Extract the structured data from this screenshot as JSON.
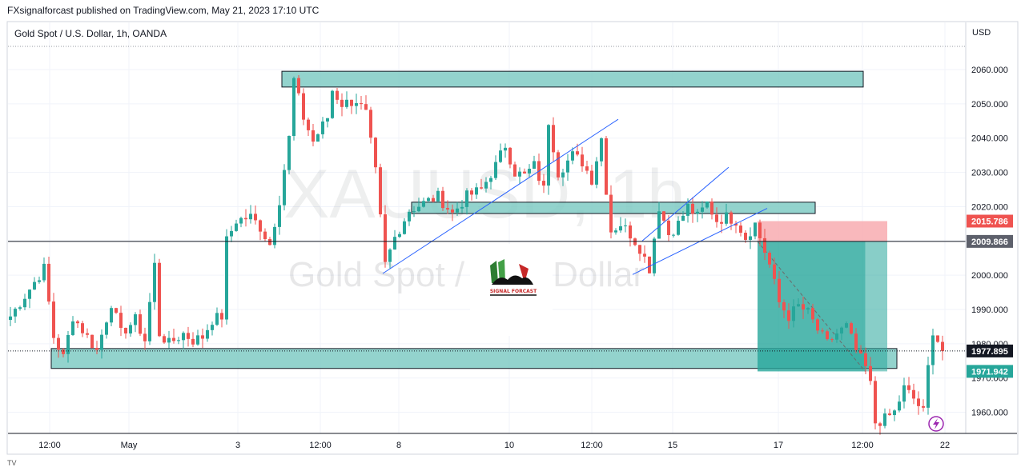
{
  "header": {
    "published": "FXsignalforcast published on TradingView.com, May 21, 2023 17:10 UTC"
  },
  "legend": {
    "symbol_description": "Gold Spot / U.S. Dollar, 1h, OANDA"
  },
  "watermark": {
    "symbol": "XAUUSD, 1h",
    "description": "Gold Spot / U.S. Dollar"
  },
  "currency": "USD",
  "logo_text": "SIGNAL FORCAST",
  "footer_text": "TV",
  "price_tags": {
    "upper": "2015.786",
    "last_line": "2009.866",
    "current": "1977.895",
    "lower": "1971.942"
  },
  "colors": {
    "up": "#26a69a",
    "down": "#ef5350",
    "zone": "#80cbc4",
    "tp": "#26a69a",
    "sl": "#f7a6ab",
    "trend": "#2962ff"
  },
  "chart_data": {
    "type": "candlestick",
    "title": "",
    "xlabel": "",
    "ylabel": "USD",
    "ylim": [
      1953.6,
      2067.0
    ],
    "grid": true,
    "x_ticks": [
      "12:00",
      "May",
      "3",
      "12:00",
      "8",
      "10",
      "12:00",
      "15",
      "17",
      "12:00",
      "22"
    ],
    "y_ticks": [
      "1960.000",
      "1970.000",
      "1980.000",
      "1990.000",
      "2000.000",
      "2010.000",
      "2020.000",
      "2030.000",
      "2040.000",
      "2050.000",
      "2060.000"
    ],
    "y_tick_values": [
      1960,
      1970,
      1980,
      1990,
      2000,
      2010,
      2020,
      2030,
      2040,
      2050,
      2060
    ],
    "waypoints": [
      [
        0,
        1988
      ],
      [
        4,
        1996
      ],
      [
        7,
        2002
      ],
      [
        9,
        1982
      ],
      [
        11,
        1976
      ],
      [
        13,
        1988
      ],
      [
        16,
        1982
      ],
      [
        18,
        1978
      ],
      [
        21,
        1992
      ],
      [
        23,
        1983
      ],
      [
        26,
        1987
      ],
      [
        28,
        1981
      ],
      [
        30,
        2003
      ],
      [
        31,
        1983
      ],
      [
        33,
        1980
      ],
      [
        36,
        1983
      ],
      [
        38,
        1981
      ],
      [
        40,
        1982
      ],
      [
        42,
        1987
      ],
      [
        44,
        1988
      ],
      [
        45,
        2010
      ],
      [
        47,
        2016
      ],
      [
        50,
        2017
      ],
      [
        52,
        2014
      ],
      [
        54,
        2009
      ],
      [
        56,
        2022
      ],
      [
        58,
        2040
      ],
      [
        59,
        2057
      ],
      [
        61,
        2046
      ],
      [
        63,
        2039
      ],
      [
        66,
        2046
      ],
      [
        67,
        2054
      ],
      [
        69,
        2050
      ],
      [
        72,
        2051
      ],
      [
        74,
        2047
      ],
      [
        76,
        2030
      ],
      [
        78,
        2003
      ],
      [
        80,
        2011
      ],
      [
        83,
        2019
      ],
      [
        86,
        2021
      ],
      [
        89,
        2023
      ],
      [
        92,
        2018
      ],
      [
        95,
        2023
      ],
      [
        98,
        2025
      ],
      [
        101,
        2032
      ],
      [
        103,
        2038
      ],
      [
        105,
        2030
      ],
      [
        107,
        2029
      ],
      [
        109,
        2032
      ],
      [
        111,
        2025
      ],
      [
        112,
        2045
      ],
      [
        114,
        2030
      ],
      [
        117,
        2035
      ],
      [
        119,
        2033
      ],
      [
        121,
        2028
      ],
      [
        123,
        2040
      ],
      [
        124,
        2025
      ],
      [
        125,
        2013
      ],
      [
        127,
        2015
      ],
      [
        129,
        2012
      ],
      [
        131,
        2008
      ],
      [
        133,
        2002
      ],
      [
        135,
        2020
      ],
      [
        137,
        2012
      ],
      [
        139,
        2015
      ],
      [
        141,
        2020
      ],
      [
        143,
        2017
      ],
      [
        145,
        2021
      ],
      [
        147,
        2016
      ],
      [
        149,
        2017
      ],
      [
        151,
        2016
      ],
      [
        153,
        2011
      ],
      [
        155,
        2015
      ],
      [
        156,
        2011
      ],
      [
        158,
        2003
      ],
      [
        160,
        1992
      ],
      [
        162,
        1988
      ],
      [
        164,
        1991
      ],
      [
        166,
        1989
      ],
      [
        168,
        1984
      ],
      [
        170,
        1980
      ],
      [
        172,
        1983
      ],
      [
        174,
        1985
      ],
      [
        176,
        1978
      ],
      [
        178,
        1973
      ],
      [
        179,
        1968
      ],
      [
        180,
        1957
      ],
      [
        182,
        1958
      ],
      [
        184,
        1960
      ],
      [
        186,
        1967
      ],
      [
        188,
        1964
      ],
      [
        190,
        1960
      ],
      [
        191,
        1973
      ],
      [
        192,
        1984
      ],
      [
        193,
        1981
      ],
      [
        194,
        1978
      ]
    ],
    "annotations": [
      {
        "type": "zone",
        "from": 57,
        "to": 178,
        "top": 2059.5,
        "bottom": 2054.9
      },
      {
        "type": "zone",
        "from": 84,
        "to": 168,
        "top": 2021.3,
        "bottom": 2018.0
      },
      {
        "type": "zone",
        "from": 9,
        "to": 185,
        "top": 1978.6,
        "bottom": 1972.8
      },
      {
        "type": "trendline",
        "from": [
          78,
          2000.5
        ],
        "to": [
          127,
          2045.5
        ]
      },
      {
        "type": "trendline",
        "from": [
          130,
          2000.2
        ],
        "to": [
          158,
          2019.5
        ]
      },
      {
        "type": "trendline",
        "from": [
          132,
          2010.0
        ],
        "to": [
          150,
          2031.5
        ]
      },
      {
        "type": "horizontal_line",
        "value": 2009.866
      },
      {
        "type": "horizontal_dotted",
        "value": 1977.895
      },
      {
        "type": "short_position",
        "from": 156,
        "to": 183,
        "stop": 2015.786,
        "entry": 2009.866,
        "target": 1971.942
      }
    ]
  }
}
